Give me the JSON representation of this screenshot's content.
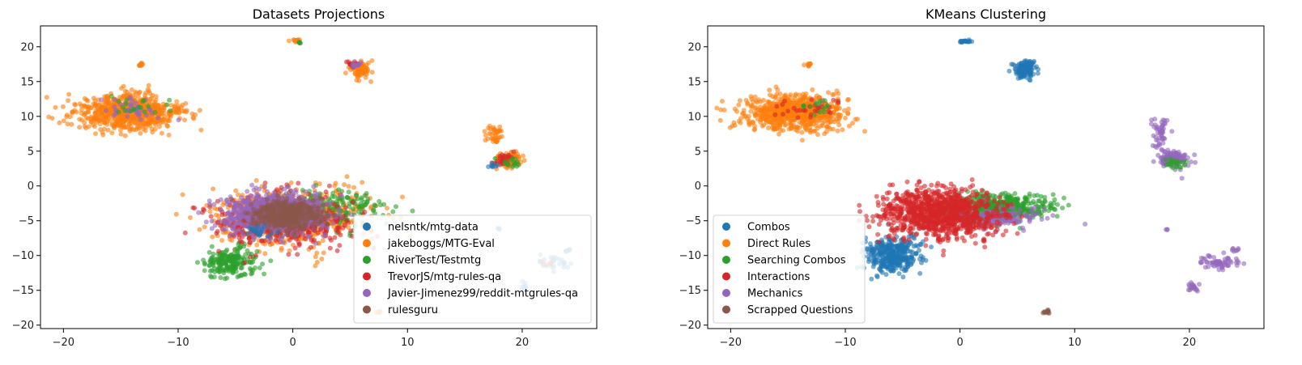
{
  "chart_data": [
    {
      "type": "scatter",
      "title": "Datasets Projections",
      "xlabel": "",
      "ylabel": "",
      "xlim": [
        -22,
        26.5
      ],
      "ylim": [
        -20.5,
        23
      ],
      "xticks": [
        -20,
        -10,
        0,
        10,
        20
      ],
      "yticks": [
        -20,
        -15,
        -10,
        -5,
        0,
        5,
        10,
        15,
        20
      ],
      "xtick_labels": [
        "−20",
        "−10",
        "0",
        "10",
        "20"
      ],
      "ytick_labels": [
        "−20",
        "−15",
        "−10",
        "−5",
        "0",
        "5",
        "10",
        "15",
        "20"
      ],
      "legend_position": "lower-right",
      "series": [
        {
          "name": "nelsntk/mtg-data",
          "color": "#1f77b4"
        },
        {
          "name": "jakeboggs/MTG-Eval",
          "color": "#ff7f0e"
        },
        {
          "name": "RiverTest/Testmtg",
          "color": "#2ca02c"
        },
        {
          "name": "TrevorJS/mtg-rules-qa",
          "color": "#d62728"
        },
        {
          "name": "Javier-Jimenez99/reddit-mtgrules-qa",
          "color": "#9467bd"
        },
        {
          "name": "rulesguru",
          "color": "#8c564b"
        }
      ],
      "clusters": [
        {
          "series": 1,
          "x": -14.5,
          "y": 10.5,
          "rx": 4.5,
          "ry": 2.6,
          "n": 700
        },
        {
          "series": 4,
          "x": -13.5,
          "y": 11.0,
          "rx": 3.0,
          "ry": 1.8,
          "n": 40
        },
        {
          "series": 2,
          "x": -13.0,
          "y": 11.5,
          "rx": 2.5,
          "ry": 1.5,
          "n": 20
        },
        {
          "series": 1,
          "x": -13.2,
          "y": 17.4,
          "rx": 0.2,
          "ry": 0.3,
          "n": 10
        },
        {
          "series": 1,
          "x": 0.3,
          "y": 20.9,
          "rx": 0.4,
          "ry": 0.2,
          "n": 15
        },
        {
          "series": 2,
          "x": 0.6,
          "y": 20.6,
          "rx": 0.2,
          "ry": 0.2,
          "n": 4
        },
        {
          "series": 1,
          "x": 5.9,
          "y": 16.8,
          "rx": 0.9,
          "ry": 1.2,
          "n": 90
        },
        {
          "series": 3,
          "x": 5.2,
          "y": 17.6,
          "rx": 0.5,
          "ry": 0.5,
          "n": 15
        },
        {
          "series": 4,
          "x": 5.4,
          "y": 17.4,
          "rx": 0.4,
          "ry": 0.4,
          "n": 10
        },
        {
          "series": 1,
          "x": 17.5,
          "y": 7.5,
          "rx": 0.8,
          "ry": 1.8,
          "n": 40
        },
        {
          "series": 1,
          "x": 18.7,
          "y": 3.7,
          "rx": 1.2,
          "ry": 1.3,
          "n": 90
        },
        {
          "series": 3,
          "x": 18.3,
          "y": 4.0,
          "rx": 0.9,
          "ry": 1.1,
          "n": 25
        },
        {
          "series": 2,
          "x": 18.8,
          "y": 3.3,
          "rx": 0.8,
          "ry": 0.9,
          "n": 15
        },
        {
          "series": 0,
          "x": 17.5,
          "y": 3.0,
          "rx": 0.5,
          "ry": 0.5,
          "n": 8
        },
        {
          "series": 0,
          "x": 18.0,
          "y": -6.2,
          "rx": 0.15,
          "ry": 0.15,
          "n": 3
        },
        {
          "series": 0,
          "x": 22.5,
          "y": -11.0,
          "rx": 1.8,
          "ry": 1.0,
          "n": 25
        },
        {
          "series": 0,
          "x": 20.3,
          "y": -14.5,
          "rx": 0.5,
          "ry": 0.6,
          "n": 10
        },
        {
          "series": 0,
          "x": 24.0,
          "y": -9.3,
          "rx": 0.3,
          "ry": 0.3,
          "n": 6
        },
        {
          "series": 3,
          "x": 22.5,
          "y": -11.2,
          "rx": 0.6,
          "ry": 0.4,
          "n": 6
        },
        {
          "series": 1,
          "x": 7.5,
          "y": -18.1,
          "rx": 0.3,
          "ry": 0.3,
          "n": 6
        },
        {
          "series": 1,
          "x": 0.0,
          "y": -4.5,
          "rx": 7.0,
          "ry": 4.0,
          "n": 600
        },
        {
          "series": 2,
          "x": -5.5,
          "y": -11.0,
          "rx": 2.2,
          "ry": 2.2,
          "n": 200
        },
        {
          "series": 2,
          "x": 3.5,
          "y": -3.0,
          "rx": 4.5,
          "ry": 2.5,
          "n": 160
        },
        {
          "series": 3,
          "x": -1.0,
          "y": -5.0,
          "rx": 6.0,
          "ry": 3.5,
          "n": 500
        },
        {
          "series": 4,
          "x": -1.5,
          "y": -4.0,
          "rx": 4.5,
          "ry": 3.0,
          "n": 700
        },
        {
          "series": 5,
          "x": -0.5,
          "y": -4.2,
          "rx": 3.0,
          "ry": 2.0,
          "n": 450
        },
        {
          "series": 0,
          "x": -3.0,
          "y": -6.5,
          "rx": 1.5,
          "ry": 1.0,
          "n": 20
        }
      ]
    },
    {
      "type": "scatter",
      "title": "KMeans Clustering",
      "xlabel": "",
      "ylabel": "",
      "xlim": [
        -22,
        26.5
      ],
      "ylim": [
        -20.5,
        23
      ],
      "xticks": [
        -20,
        -10,
        0,
        10,
        20
      ],
      "yticks": [
        -20,
        -15,
        -10,
        -5,
        0,
        5,
        10,
        15,
        20
      ],
      "xtick_labels": [
        "−20",
        "−10",
        "0",
        "10",
        "20"
      ],
      "ytick_labels": [
        "−20",
        "−15",
        "−10",
        "−5",
        "0",
        "5",
        "10",
        "15",
        "20"
      ],
      "legend_position": "lower-left",
      "series": [
        {
          "name": "Combos",
          "color": "#1f77b4"
        },
        {
          "name": "Direct Rules",
          "color": "#ff7f0e"
        },
        {
          "name": "Searching Combos",
          "color": "#2ca02c"
        },
        {
          "name": "Interactions",
          "color": "#d62728"
        },
        {
          "name": "Mechanics",
          "color": "#9467bd"
        },
        {
          "name": "Scrapped Questions",
          "color": "#8c564b"
        }
      ],
      "clusters": [
        {
          "series": 1,
          "x": -14.5,
          "y": 10.5,
          "rx": 4.5,
          "ry": 2.6,
          "n": 700
        },
        {
          "series": 3,
          "x": -13.0,
          "y": 11.0,
          "rx": 2.5,
          "ry": 1.5,
          "n": 30
        },
        {
          "series": 2,
          "x": -12.5,
          "y": 11.5,
          "rx": 2.0,
          "ry": 1.2,
          "n": 15
        },
        {
          "series": 1,
          "x": -13.2,
          "y": 17.4,
          "rx": 0.2,
          "ry": 0.3,
          "n": 10
        },
        {
          "series": 0,
          "x": 0.5,
          "y": 20.8,
          "rx": 0.5,
          "ry": 0.2,
          "n": 18
        },
        {
          "series": 0,
          "x": 5.7,
          "y": 16.8,
          "rx": 0.9,
          "ry": 1.2,
          "n": 140
        },
        {
          "series": 4,
          "x": 17.5,
          "y": 7.5,
          "rx": 0.8,
          "ry": 1.8,
          "n": 50
        },
        {
          "series": 4,
          "x": 18.5,
          "y": 4.0,
          "rx": 1.2,
          "ry": 1.2,
          "n": 130
        },
        {
          "series": 2,
          "x": 18.8,
          "y": 3.2,
          "rx": 0.9,
          "ry": 0.7,
          "n": 25
        },
        {
          "series": 4,
          "x": 18.0,
          "y": -6.2,
          "rx": 0.15,
          "ry": 0.15,
          "n": 3
        },
        {
          "series": 4,
          "x": 22.5,
          "y": -11.0,
          "rx": 1.8,
          "ry": 1.0,
          "n": 60
        },
        {
          "series": 4,
          "x": 20.3,
          "y": -14.5,
          "rx": 0.5,
          "ry": 0.6,
          "n": 20
        },
        {
          "series": 4,
          "x": 24.0,
          "y": -9.3,
          "rx": 0.3,
          "ry": 0.3,
          "n": 8
        },
        {
          "series": 5,
          "x": 7.5,
          "y": -18.1,
          "rx": 0.3,
          "ry": 0.3,
          "n": 12
        },
        {
          "series": 0,
          "x": -5.8,
          "y": -10.0,
          "rx": 2.3,
          "ry": 2.5,
          "n": 350
        },
        {
          "series": 2,
          "x": 3.5,
          "y": -3.0,
          "rx": 4.5,
          "ry": 2.0,
          "n": 450
        },
        {
          "series": 4,
          "x": 3.0,
          "y": -4.5,
          "rx": 4.0,
          "ry": 1.5,
          "n": 160
        },
        {
          "series": 3,
          "x": -2.0,
          "y": -4.0,
          "rx": 5.0,
          "ry": 3.5,
          "n": 1000
        }
      ]
    }
  ]
}
